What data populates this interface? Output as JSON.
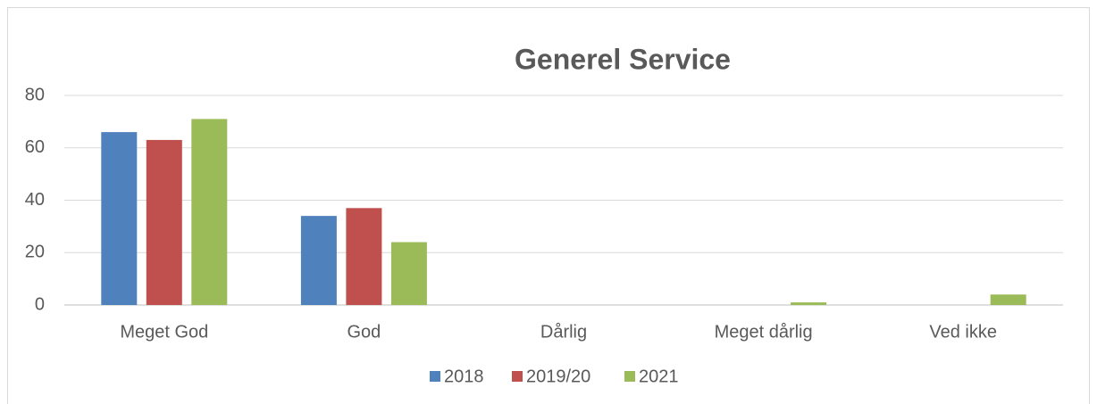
{
  "chart_data": {
    "type": "bar",
    "title": "Generel Service",
    "categories": [
      "Meget God",
      "God",
      "Dårlig",
      "Meget dårlig",
      "Ved ikke"
    ],
    "series": [
      {
        "name": "2018",
        "color": "#4f81bd",
        "values": [
          66,
          34,
          0,
          0,
          0
        ]
      },
      {
        "name": "2019/20",
        "color": "#c0504d",
        "values": [
          63,
          37,
          0,
          0,
          0
        ]
      },
      {
        "name": "2021",
        "color": "#9bbb59",
        "values": [
          71,
          24,
          0,
          1,
          4
        ]
      }
    ],
    "ylim": [
      0,
      80
    ],
    "yticks": [
      0,
      20,
      40,
      60,
      80
    ],
    "grid": true,
    "legend": "bottom"
  }
}
